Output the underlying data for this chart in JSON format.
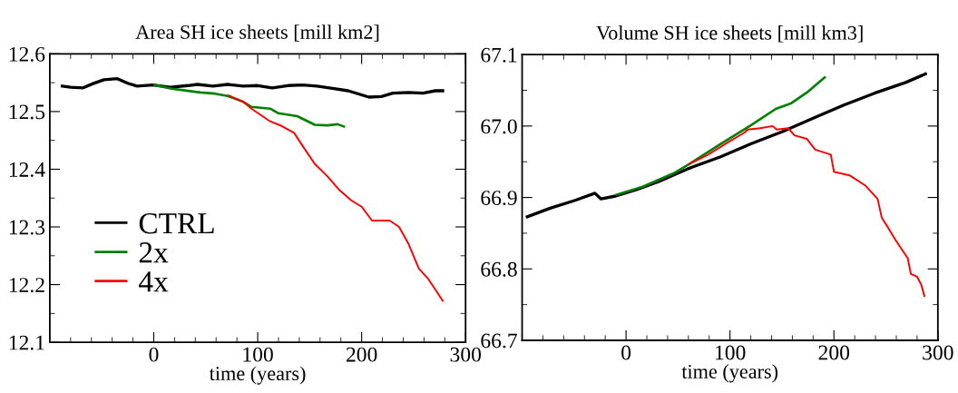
{
  "chart_data": [
    {
      "type": "line",
      "title": "Area SH ice sheets [mill km2]",
      "xlabel": "time (years)",
      "legend": "bottom left",
      "grid": false,
      "xlim": [
        -100,
        300
      ],
      "ylim": [
        12.1,
        12.6
      ],
      "xticks": [
        {
          "value": -80,
          "label": null
        },
        {
          "value": -60,
          "label": null
        },
        {
          "value": -40,
          "label": null
        },
        {
          "value": -20,
          "label": null
        },
        0,
        {
          "value": 20,
          "label": null
        },
        {
          "value": 40,
          "label": null
        },
        {
          "value": 60,
          "label": null
        },
        {
          "value": 80,
          "label": null
        },
        100,
        {
          "value": 120,
          "label": null
        },
        {
          "value": 140,
          "label": null
        },
        {
          "value": 160,
          "label": null
        },
        {
          "value": 180,
          "label": null
        },
        200,
        {
          "value": 220,
          "label": null
        },
        {
          "value": 240,
          "label": null
        },
        {
          "value": 260,
          "label": null
        },
        {
          "value": 280,
          "label": null
        },
        300
      ],
      "yticks": [
        12.1,
        {
          "value": 12.15,
          "label": null
        },
        12.2,
        {
          "value": 12.25,
          "label": null
        },
        12.3,
        {
          "value": 12.35,
          "label": null
        },
        12.4,
        {
          "value": 12.45,
          "label": null
        },
        12.5,
        {
          "value": 12.55,
          "label": null
        },
        12.6
      ],
      "series": [
        {
          "name": "CTRL",
          "color": "#000000",
          "x": [
            -88,
            -80,
            -68,
            -59,
            -48,
            -35,
            -25,
            -16,
            -1,
            16,
            33,
            42,
            57,
            71,
            86,
            100,
            114,
            129,
            143,
            157,
            172,
            187,
            207,
            219,
            230,
            245,
            259,
            271,
            278
          ],
          "values": [
            12.544,
            12.542,
            12.541,
            12.548,
            12.555,
            12.557,
            12.549,
            12.544,
            12.546,
            12.542,
            12.545,
            12.547,
            12.544,
            12.547,
            12.544,
            12.545,
            12.541,
            12.545,
            12.546,
            12.544,
            12.54,
            12.536,
            12.525,
            12.526,
            12.532,
            12.533,
            12.532,
            12.536,
            12.536
          ]
        },
        {
          "name": "2x",
          "color": "#008000",
          "x": [
            1,
            16,
            28,
            45,
            59,
            71,
            86,
            94,
            112,
            120,
            138,
            155,
            167,
            177,
            183
          ],
          "values": [
            12.546,
            12.54,
            12.537,
            12.533,
            12.531,
            12.527,
            12.517,
            12.508,
            12.505,
            12.497,
            12.492,
            12.477,
            12.476,
            12.478,
            12.474
          ]
        },
        {
          "name": "4x",
          "color": "#ff0000",
          "x": [
            72,
            86,
            94,
            112,
            123,
            135,
            143,
            155,
            167,
            178,
            190,
            200,
            210,
            227,
            236,
            245,
            255,
            264,
            271,
            278
          ],
          "values": [
            12.528,
            12.517,
            12.505,
            12.483,
            12.475,
            12.463,
            12.441,
            12.409,
            12.388,
            12.365,
            12.346,
            12.335,
            12.311,
            12.311,
            12.3,
            12.271,
            12.228,
            12.21,
            12.191,
            12.172
          ]
        }
      ]
    },
    {
      "type": "line",
      "title": "Volume SH ice sheets [mill km3]",
      "xlabel": "time (years)",
      "grid": false,
      "xlim": [
        -100,
        300
      ],
      "ylim": [
        66.7,
        67.1
      ],
      "xticks": [
        {
          "value": -80,
          "label": null
        },
        {
          "value": -60,
          "label": null
        },
        {
          "value": -40,
          "label": null
        },
        {
          "value": -20,
          "label": null
        },
        0,
        {
          "value": 20,
          "label": null
        },
        {
          "value": 40,
          "label": null
        },
        {
          "value": 60,
          "label": null
        },
        {
          "value": 80,
          "label": null
        },
        100,
        {
          "value": 120,
          "label": null
        },
        {
          "value": 140,
          "label": null
        },
        {
          "value": 160,
          "label": null
        },
        {
          "value": 180,
          "label": null
        },
        200,
        {
          "value": 220,
          "label": null
        },
        {
          "value": 240,
          "label": null
        },
        {
          "value": 260,
          "label": null
        },
        {
          "value": 280,
          "label": null
        },
        300
      ],
      "yticks": [
        {
          "value": 66.7,
          "label": "66.7"
        },
        {
          "value": 66.75,
          "label": null
        },
        {
          "value": 66.8,
          "label": "66.8"
        },
        {
          "value": 66.85,
          "label": null
        },
        {
          "value": 66.9,
          "label": "66.9"
        },
        {
          "value": 66.95,
          "label": null
        },
        {
          "value": 67.0,
          "label": "67.0"
        },
        {
          "value": 67.05,
          "label": null
        },
        {
          "value": 67.1,
          "label": "67.1"
        }
      ],
      "series": [
        {
          "color": "#000000",
          "x": [
            -95,
            -73,
            -49,
            -30,
            -24,
            -10,
            10,
            31,
            61,
            91,
            120,
            150,
            180,
            209,
            239,
            269,
            288
          ],
          "values": [
            66.873,
            66.885,
            66.896,
            66.906,
            66.898,
            66.902,
            66.911,
            66.922,
            66.941,
            66.957,
            66.975,
            66.992,
            67.011,
            67.029,
            67.046,
            67.061,
            67.073
          ]
        },
        {
          "color": "#008000",
          "x": [
            -9,
            16,
            46,
            61,
            91,
            120,
            144,
            159,
            174,
            191
          ],
          "values": [
            66.904,
            66.915,
            66.934,
            66.947,
            66.975,
            67.001,
            67.024,
            67.032,
            67.047,
            67.068
          ]
        },
        {
          "color": "#ff0000",
          "x": [
            61,
            79,
            99,
            114,
            117,
            129,
            141,
            145,
            156,
            162,
            174,
            182,
            197,
            200,
            215,
            230,
            242,
            246,
            248,
            252,
            259,
            271,
            274,
            280,
            284,
            287
          ],
          "values": [
            66.947,
            66.96,
            66.978,
            66.991,
            66.995,
            66.997,
            67.0,
            66.995,
            66.997,
            66.987,
            66.982,
            66.967,
            66.96,
            66.936,
            66.931,
            66.917,
            66.898,
            66.872,
            66.867,
            66.858,
            66.841,
            66.815,
            66.793,
            66.789,
            66.778,
            66.762
          ]
        }
      ]
    }
  ]
}
